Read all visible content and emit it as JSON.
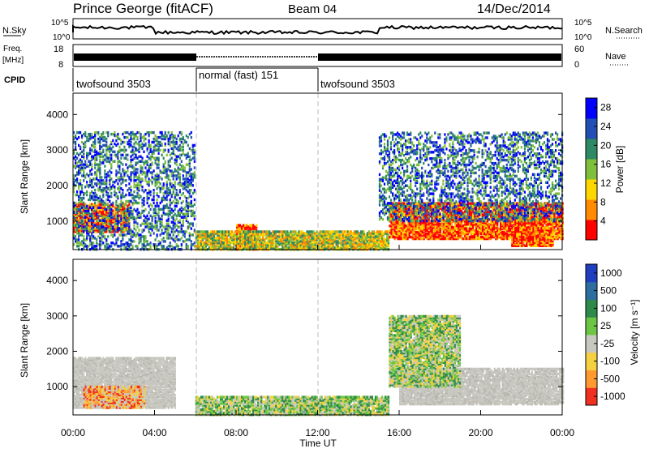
{
  "header": {
    "title": "Prince George (fitACF)",
    "beam": "Beam 04",
    "date": "14/Dec/2014"
  },
  "top_panels": {
    "nsky": {
      "label": "N.Sky",
      "ticks": [
        "10^5",
        "10^0"
      ]
    },
    "nsearch": {
      "label": "N.Search",
      "ticks": [
        "10^5",
        "10^0"
      ]
    },
    "freq": {
      "label": "Freq.",
      "unit": "[MHz]",
      "ticks": [
        "18",
        "8"
      ]
    },
    "nave": {
      "label": "Nave",
      "ticks": [
        "60",
        "0"
      ]
    },
    "cpid": {
      "label": "CPID",
      "segments": [
        {
          "name": "twofsound 3503",
          "start": "00:00",
          "end": "06:00"
        },
        {
          "name": "normal (fast) 151",
          "start": "06:00",
          "end": "12:00"
        },
        {
          "name": "twofsound 3503",
          "start": "12:00",
          "end": "24:00"
        }
      ]
    }
  },
  "chart_data": [
    {
      "type": "heatmap",
      "name": "Power",
      "ylabel": "Slant Range [km]",
      "yticks": [
        "1000",
        "2000",
        "3000",
        "4000"
      ],
      "ylim": [
        200,
        4600
      ],
      "colorbar": {
        "label": "Power [dB]",
        "ticks": [
          "4",
          "8",
          "12",
          "16",
          "20",
          "24",
          "28"
        ],
        "range": [
          0,
          30
        ],
        "colors": [
          "#0000ff",
          "#224fb4",
          "#2e8a64",
          "#7fbf3a",
          "#ffd700",
          "#ff8c00",
          "#ff0000"
        ]
      },
      "echo_regions": [
        {
          "x": [
            0.0,
            2.8
          ],
          "y": [
            700,
            1500
          ],
          "level": "high"
        },
        {
          "x": [
            0.0,
            6.0
          ],
          "y": [
            200,
            3500
          ],
          "level": "patchy"
        },
        {
          "x": [
            8.0,
            9.0
          ],
          "y": [
            200,
            900
          ],
          "level": "high"
        },
        {
          "x": [
            6.0,
            15.5
          ],
          "y": [
            200,
            700
          ],
          "level": "low"
        },
        {
          "x": [
            15.5,
            24.0
          ],
          "y": [
            500,
            1500
          ],
          "level": "high"
        },
        {
          "x": [
            21.5,
            23.5
          ],
          "y": [
            300,
            800
          ],
          "level": "high"
        },
        {
          "x": [
            15.0,
            24.0
          ],
          "y": [
            1000,
            3500
          ],
          "level": "patchy"
        }
      ]
    },
    {
      "type": "heatmap",
      "name": "Velocity",
      "ylabel": "Slant Range [km]",
      "yticks": [
        "1000",
        "2000",
        "3000",
        "4000"
      ],
      "ylim": [
        200,
        4600
      ],
      "colorbar": {
        "label": "Velocity [m s⁻¹]",
        "ticks": [
          "1000",
          "500",
          "100",
          "25",
          "-25",
          "-100",
          "-500",
          "-1000"
        ],
        "colors": [
          "#1f3fbf",
          "#2e6e9e",
          "#2e8a4a",
          "#6cc644",
          "#c8c8c0",
          "#f5d040",
          "#ff9a30",
          "#f03020"
        ]
      },
      "echo_regions": [
        {
          "x": [
            0.0,
            5.0
          ],
          "y": [
            400,
            1800
          ],
          "level": "ground"
        },
        {
          "x": [
            0.5,
            3.5
          ],
          "y": [
            400,
            1000
          ],
          "level": "negative"
        },
        {
          "x": [
            6.0,
            15.5
          ],
          "y": [
            200,
            700
          ],
          "level": "positive"
        },
        {
          "x": [
            16.0,
            24.0
          ],
          "y": [
            500,
            1500
          ],
          "level": "ground"
        },
        {
          "x": [
            15.5,
            19.0
          ],
          "y": [
            1000,
            3000
          ],
          "level": "positive"
        }
      ]
    }
  ],
  "time_axis": {
    "label": "Time UT",
    "ticks": [
      "00:00",
      "04:00",
      "08:00",
      "12:00",
      "16:00",
      "20:00",
      "00:00"
    ],
    "range_hours": [
      0,
      24
    ]
  }
}
